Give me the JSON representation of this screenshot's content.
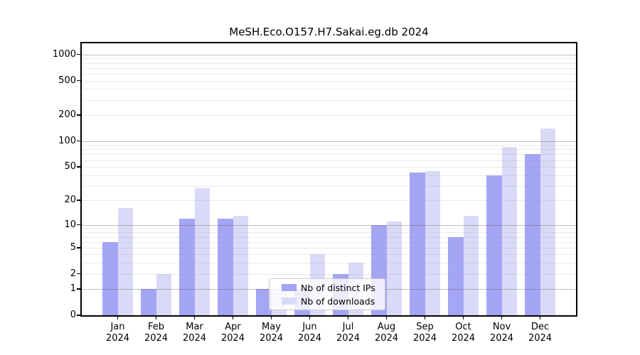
{
  "figure": {
    "background": "#ffffff",
    "plot_border_color": "#000000"
  },
  "chart_data": {
    "type": "bar",
    "title": "MeSH.Eco.O157.H7.Sakai.eg.db 2024",
    "categories": [
      "Jan",
      "Feb",
      "Mar",
      "Apr",
      "May",
      "Jun",
      "Jul",
      "Aug",
      "Sep",
      "Oct",
      "Nov",
      "Dec"
    ],
    "category_year": "2024",
    "series": [
      {
        "name": "Nb of distinct IPs",
        "color": "#a5a5f5",
        "values": [
          6,
          1,
          12,
          12,
          1,
          1,
          2,
          10,
          43,
          7,
          40,
          70
        ]
      },
      {
        "name": "Nb of downloads",
        "color": "#dadaf8",
        "values": [
          16,
          2,
          28,
          13,
          1,
          4,
          3,
          11,
          45,
          13,
          85,
          140
        ]
      }
    ],
    "xlabel": "",
    "ylabel": "",
    "yscale": "log1p",
    "ylim": [
      0,
      1350
    ],
    "yticks_labeled": [
      0,
      1,
      2,
      5,
      10,
      20,
      50,
      100,
      200,
      500,
      1000
    ],
    "yticks_major_gridlines": [
      1,
      10,
      100,
      1000
    ],
    "yticks_minor_gridlines": [
      2,
      3,
      4,
      5,
      6,
      7,
      8,
      9,
      20,
      30,
      40,
      50,
      60,
      70,
      80,
      90,
      200,
      300,
      400,
      500,
      600,
      700,
      800,
      900
    ],
    "grid": true,
    "legend": {
      "position": "lower-center-inside",
      "labels": [
        "Nb of distinct IPs",
        "Nb of downloads"
      ]
    }
  }
}
